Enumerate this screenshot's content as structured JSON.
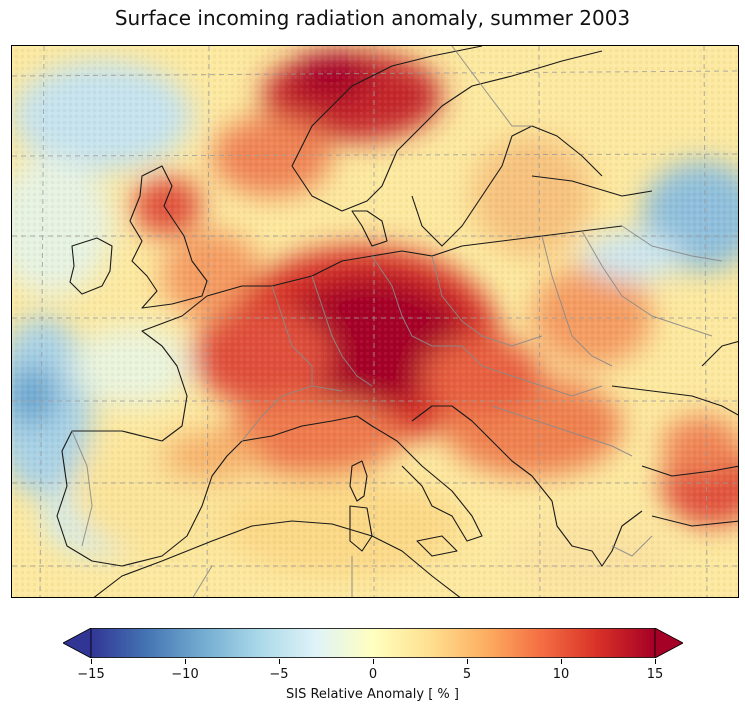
{
  "map": {
    "title": "Surface incoming radiation anomaly, summer 2003",
    "region": "Europe",
    "variable": "SIS Relative Anomaly",
    "colormap": "RdYlBu_r",
    "value_range": [
      -15,
      15
    ],
    "colors": {
      "very_negative": "#313695",
      "negative": "#74add1",
      "neutral": "#ffffbf",
      "positive": "#f46d43",
      "very_positive": "#a50026",
      "coastline": "#1a1a1a",
      "border": "#888888",
      "gridline": "#999999"
    },
    "anomaly_regions": [
      {
        "area": "Central Europe / France / Germany",
        "value": 15
      },
      {
        "area": "Southern Norway",
        "value": 14
      },
      {
        "area": "Balkans / Hungary",
        "value": 9
      },
      {
        "area": "Western Turkey",
        "value": 12
      },
      {
        "area": "Atlantic west of Portugal",
        "value": -6
      },
      {
        "area": "Baltic / Western Russia",
        "value": -7
      },
      {
        "area": "North Atlantic",
        "value": -4
      },
      {
        "area": "Iberian Peninsula",
        "value": 2
      },
      {
        "area": "North Africa",
        "value": 3
      }
    ]
  },
  "colorbar": {
    "label": "SIS Relative Anomaly [ % ]",
    "ticks": [
      "−15",
      "−10",
      "−5",
      "0",
      "5",
      "10",
      "15"
    ],
    "extend": "both"
  }
}
